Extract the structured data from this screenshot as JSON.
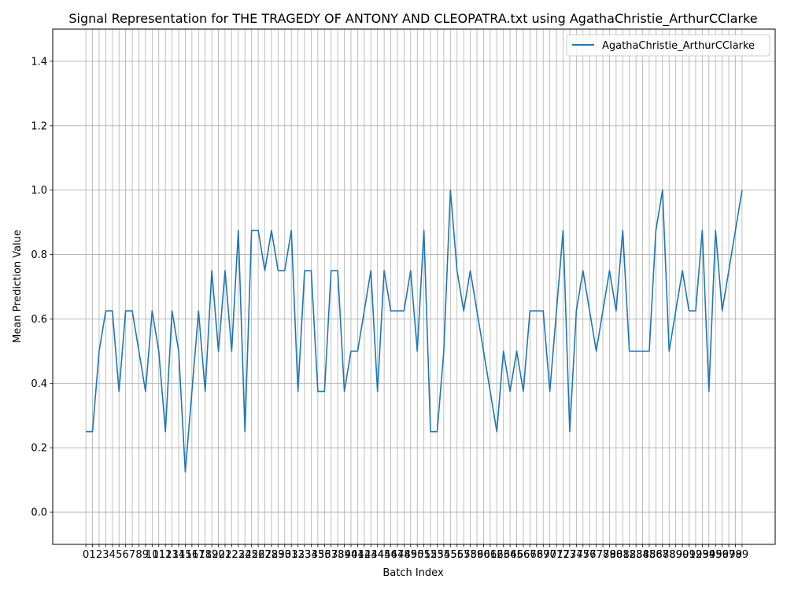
{
  "chart_data": {
    "type": "line",
    "title": "Signal Representation for THE TRAGEDY OF ANTONY AND CLEOPATRA.txt using AgathaChristie_ArthurCClarke",
    "xlabel": "Batch Index",
    "ylabel": "Mean Prediction Value",
    "ylim": [
      -0.1,
      1.5
    ],
    "xlim": [
      -5,
      104
    ],
    "yticks": [
      0.0,
      0.2,
      0.4,
      0.6,
      0.8,
      1.0,
      1.2,
      1.4
    ],
    "ytick_labels": [
      "0.0",
      "0.2",
      "0.4",
      "0.6",
      "0.8",
      "1.0",
      "1.2",
      "1.4"
    ],
    "grid": true,
    "legend": "top-right",
    "series": [
      {
        "name": "AgathaChristie_ArthurCClarke",
        "color": "#1f77b4",
        "values": [
          0.25,
          0.25,
          0.5,
          0.625,
          0.625,
          0.375,
          0.625,
          0.625,
          0.5,
          0.375,
          0.625,
          0.5,
          0.25,
          0.625,
          0.5,
          0.125,
          0.375,
          0.625,
          0.375,
          0.75,
          0.5,
          0.75,
          0.5,
          0.875,
          0.25,
          0.875,
          0.875,
          0.75,
          0.875,
          0.75,
          0.75,
          0.875,
          0.375,
          0.75,
          0.75,
          0.375,
          0.375,
          0.75,
          0.75,
          0.375,
          0.5,
          0.5,
          0.625,
          0.75,
          0.375,
          0.75,
          0.625,
          0.625,
          0.625,
          0.75,
          0.5,
          0.875,
          0.25,
          0.25,
          0.5,
          1.0,
          0.75,
          0.625,
          0.75,
          0.625,
          0.5,
          0.375,
          0.25,
          0.5,
          0.375,
          0.5,
          0.375,
          0.625,
          0.625,
          0.625,
          0.375,
          0.625,
          0.875,
          0.25,
          0.625,
          0.75,
          0.625,
          0.5,
          0.625,
          0.75,
          0.625,
          0.875,
          0.5,
          0.5,
          0.5,
          0.5,
          0.875,
          1.0,
          0.5,
          0.625,
          0.75,
          0.625,
          0.625,
          0.875,
          0.375,
          0.875,
          0.625,
          0.75,
          0.875,
          1.0
        ]
      }
    ]
  }
}
